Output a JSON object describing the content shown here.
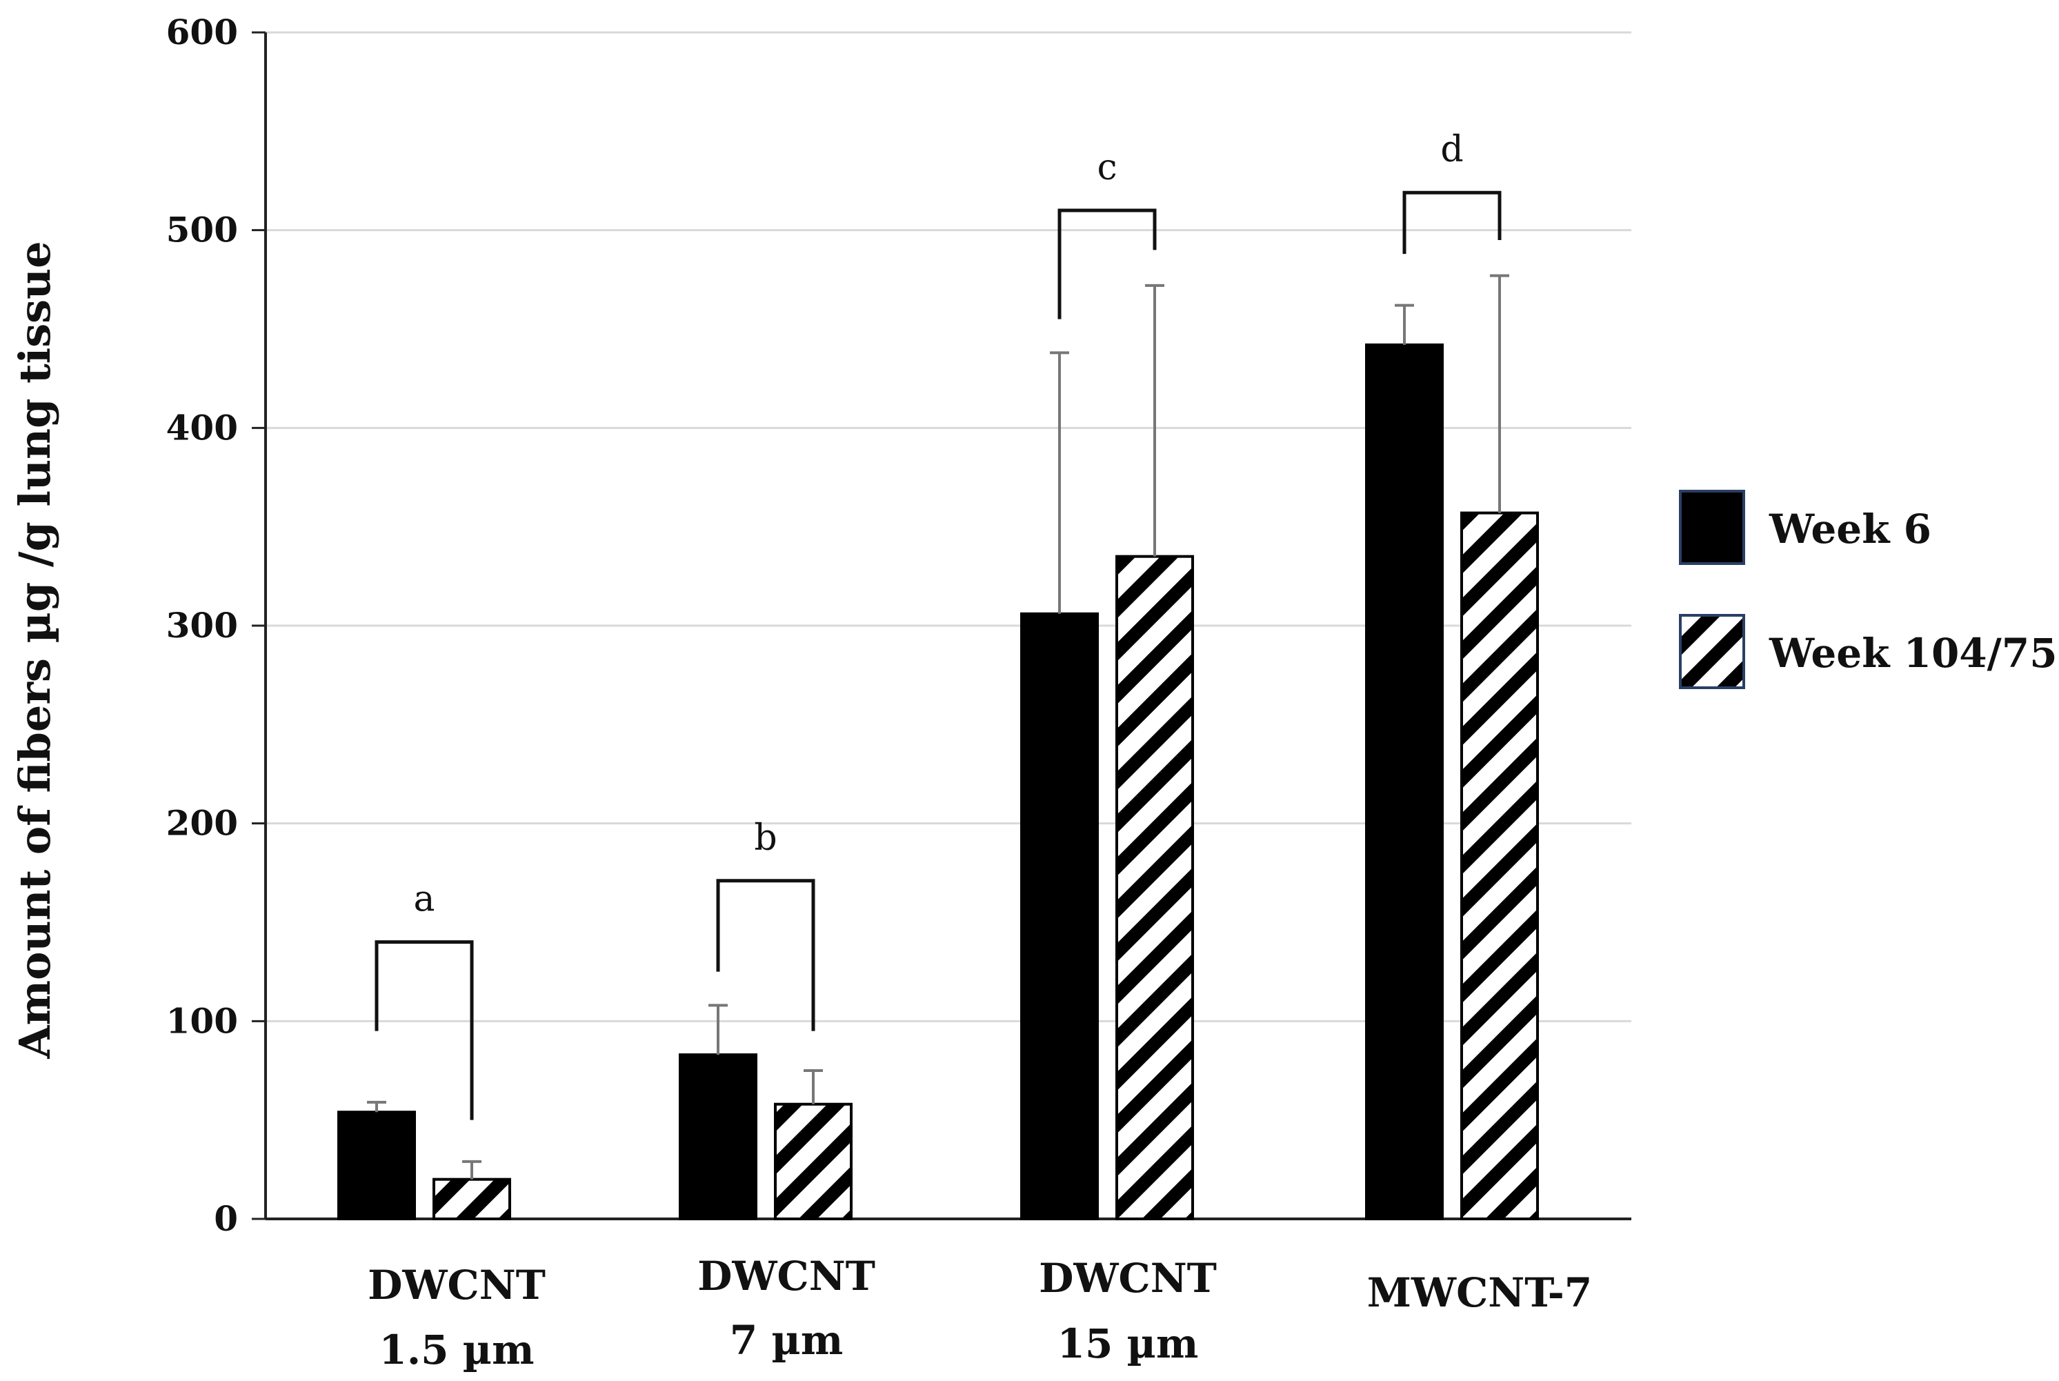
{
  "chart_data": {
    "type": "bar",
    "title": "",
    "xlabel": "",
    "ylabel": "Amount of fibers µg /g lung tissue",
    "ylim": [
      0,
      600
    ],
    "yticks": [
      0,
      100,
      200,
      300,
      400,
      500,
      600
    ],
    "grid": true,
    "legend_position": "right",
    "categories": [
      [
        "DWCNT",
        "1.5 µm"
      ],
      [
        "DWCNT",
        "7 µm"
      ],
      [
        "DWCNT",
        "15 µm"
      ],
      [
        "MWCNT-7"
      ]
    ],
    "series": [
      {
        "name": "Week 6",
        "pattern": "solid",
        "values": [
          54,
          83,
          306,
          442
        ],
        "errors": [
          5,
          25,
          132,
          20
        ]
      },
      {
        "name": "Week 104/75",
        "pattern": "hatch",
        "values": [
          20,
          58,
          335,
          357
        ],
        "errors": [
          9,
          17,
          137,
          120
        ]
      }
    ],
    "annotations": [
      {
        "label": "a",
        "category": 0,
        "bracket_top": 140,
        "left_end": 95,
        "right_end": 50
      },
      {
        "label": "b",
        "category": 1,
        "bracket_top": 171,
        "left_end": 125,
        "right_end": 95
      },
      {
        "label": "c",
        "category": 2,
        "bracket_top": 510,
        "left_end": 455,
        "right_end": 490
      },
      {
        "label": "d",
        "category": 3,
        "bracket_top": 519,
        "left_end": 488,
        "right_end": 495
      }
    ]
  }
}
